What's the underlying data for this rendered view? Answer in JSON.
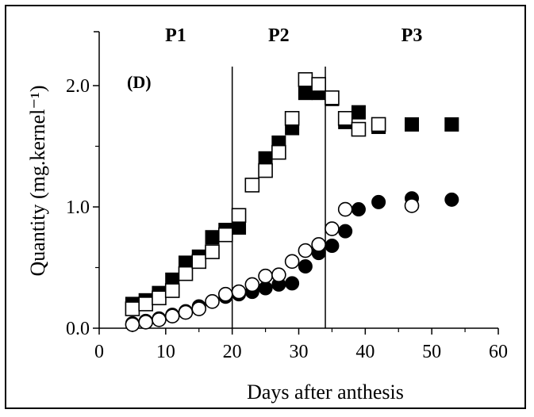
{
  "chart_data": {
    "type": "scatter",
    "panel_label": "(D)",
    "xlabel": "Days after anthesis",
    "ylabel": "Quantity (mg.kernel⁻¹)",
    "xlim": [
      0,
      60
    ],
    "ylim": [
      0,
      2.4
    ],
    "x_ticks": [
      0,
      10,
      20,
      30,
      40,
      50,
      60
    ],
    "y_ticks": [
      0.0,
      1.0,
      2.0
    ],
    "x_tick_labels": [
      "0",
      "10",
      "20",
      "30",
      "40",
      "50",
      "60"
    ],
    "y_tick_labels": [
      "0.0",
      "1.0",
      "2.0"
    ],
    "grid": false,
    "phase_boundaries": [
      20,
      34
    ],
    "phases": [
      {
        "label": "P1",
        "x": 11.5
      },
      {
        "label": "P2",
        "x": 27
      },
      {
        "label": "P3",
        "x": 47
      }
    ],
    "series": [
      {
        "marker": "square",
        "fill": "filled",
        "x": [
          5,
          7,
          9,
          11,
          13,
          15,
          17,
          19,
          21,
          23,
          25,
          27,
          29,
          31,
          33,
          35,
          37,
          39,
          42,
          47,
          53
        ],
        "y": [
          0.2,
          0.23,
          0.29,
          0.4,
          0.54,
          0.59,
          0.75,
          0.81,
          0.83,
          1.18,
          1.4,
          1.53,
          1.65,
          1.94,
          1.94,
          1.89,
          1.7,
          1.78,
          1.66,
          1.68,
          1.68
        ]
      },
      {
        "marker": "square",
        "fill": "open",
        "x": [
          5,
          7,
          9,
          11,
          13,
          15,
          17,
          19,
          21,
          23,
          25,
          27,
          29,
          31,
          33,
          35,
          37,
          39,
          42
        ],
        "y": [
          0.16,
          0.2,
          0.25,
          0.31,
          0.45,
          0.55,
          0.63,
          0.77,
          0.93,
          1.18,
          1.3,
          1.45,
          1.73,
          2.05,
          2.01,
          1.9,
          1.73,
          1.64,
          1.68
        ]
      },
      {
        "marker": "circle",
        "fill": "filled",
        "x": [
          5,
          7,
          9,
          11,
          13,
          15,
          17,
          19,
          21,
          23,
          25,
          27,
          29,
          31,
          33,
          35,
          37,
          39,
          42,
          47,
          53
        ],
        "y": [
          0.04,
          0.06,
          0.08,
          0.11,
          0.14,
          0.18,
          0.22,
          0.26,
          0.28,
          0.3,
          0.33,
          0.36,
          0.37,
          0.51,
          0.62,
          0.68,
          0.8,
          0.98,
          1.04,
          1.07,
          1.06
        ]
      },
      {
        "marker": "circle",
        "fill": "open",
        "x": [
          5,
          7,
          9,
          11,
          13,
          15,
          17,
          19,
          21,
          23,
          25,
          27,
          29,
          31,
          33,
          35,
          37,
          47
        ],
        "y": [
          0.03,
          0.05,
          0.07,
          0.1,
          0.13,
          0.16,
          0.22,
          0.28,
          0.3,
          0.36,
          0.43,
          0.44,
          0.55,
          0.64,
          0.69,
          0.82,
          0.98,
          1.01
        ]
      }
    ]
  }
}
